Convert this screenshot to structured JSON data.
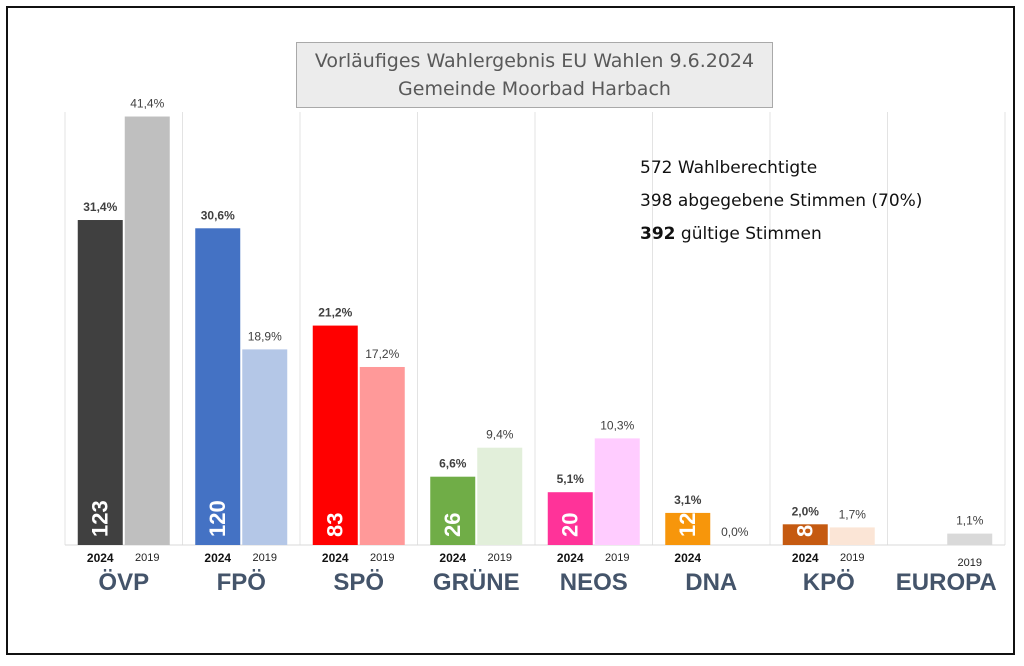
{
  "title": {
    "line1": "Vorläufiges Wahlergebnis EU Wahlen 9.6.2024",
    "line2": "Gemeinde Moorbad Harbach"
  },
  "stats": {
    "eligible": "572 Wahlberechtigte",
    "cast": "398 abgegebene Stimmen (70%)",
    "valid_number": "392",
    "valid_label": " gültige Stimmen"
  },
  "chart_data": {
    "type": "bar",
    "categories": [
      "ÖVP",
      "FPÖ",
      "SPÖ",
      "GRÜNE",
      "NEOS",
      "DNA",
      "KPÖ",
      "EUROPA"
    ],
    "series": [
      {
        "name": "2024",
        "values": [
          31.4,
          30.6,
          21.2,
          6.6,
          5.1,
          3.1,
          2.0,
          null
        ],
        "value_labels": [
          "31,4%",
          "30,6%",
          "21,2%",
          "6,6%",
          "5,1%",
          "3,1%",
          "2,0%",
          ""
        ],
        "votes": [
          "123",
          "120",
          "83",
          "26",
          "20",
          "12",
          "8",
          ""
        ],
        "year_labels": [
          "2024",
          "2024",
          "2024",
          "2024",
          "2024",
          "2024",
          "2024",
          ""
        ],
        "colors": [
          "#404040",
          "#4472c4",
          "#ff0000",
          "#70ad47",
          "#ff3399",
          "#f7960b",
          "#c55a11",
          "#d9d9d9"
        ]
      },
      {
        "name": "2019",
        "values": [
          41.4,
          18.9,
          17.2,
          9.4,
          10.3,
          0.0,
          1.7,
          1.1
        ],
        "value_labels": [
          "41,4%",
          "18,9%",
          "17,2%",
          "9,4%",
          "10,3%",
          "0,0%",
          "1,7%",
          "1,1%"
        ],
        "year_labels": [
          "2019",
          "2019",
          "2019",
          "2019",
          "2019",
          "",
          "2019",
          "2019"
        ],
        "colors": [
          "#bfbfbf",
          "#b4c7e7",
          "#ff9999",
          "#e2efda",
          "#ffccff",
          "#fbe5d6",
          "#fbe5d6",
          "#d9d9d9"
        ]
      }
    ],
    "ylim": [
      0,
      45
    ],
    "grid": false,
    "category_label_color": "#44546a"
  }
}
